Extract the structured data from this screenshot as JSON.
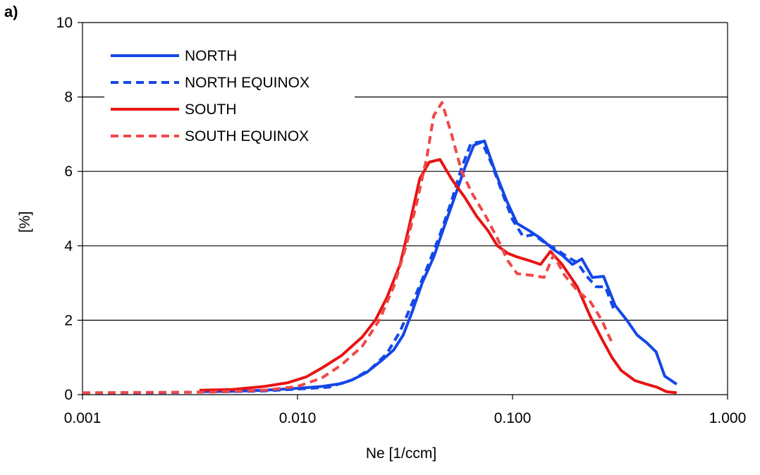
{
  "panel_label": "a)",
  "chart_data": {
    "type": "line",
    "title": "",
    "xlabel": "Ne [1/ccm]",
    "ylabel": "[%]",
    "xscale": "log",
    "xlim": [
      0.001,
      1.0
    ],
    "ylim": [
      0,
      10
    ],
    "xticks": [
      0.001,
      0.01,
      0.1,
      1.0
    ],
    "xtick_labels": [
      "0.001",
      "0.010",
      "0.100",
      "1.000"
    ],
    "yticks": [
      0,
      2,
      4,
      6,
      8,
      10
    ],
    "ytick_labels": [
      "0",
      "2",
      "4",
      "6",
      "8",
      "10"
    ],
    "grid": "horizontal",
    "legend_position": "top-left",
    "series": [
      {
        "name": "NORTH",
        "color": "#1347e8",
        "dash": "solid",
        "points": [
          [
            0.0035,
            0.08
          ],
          [
            0.005,
            0.09
          ],
          [
            0.007,
            0.12
          ],
          [
            0.01,
            0.17
          ],
          [
            0.013,
            0.22
          ],
          [
            0.016,
            0.3
          ],
          [
            0.018,
            0.4
          ],
          [
            0.021,
            0.6
          ],
          [
            0.025,
            0.95
          ],
          [
            0.028,
            1.2
          ],
          [
            0.031,
            1.6
          ],
          [
            0.034,
            2.2
          ],
          [
            0.038,
            3.0
          ],
          [
            0.043,
            3.7
          ],
          [
            0.048,
            4.5
          ],
          [
            0.053,
            5.2
          ],
          [
            0.06,
            6.1
          ],
          [
            0.066,
            6.7
          ],
          [
            0.074,
            6.82
          ],
          [
            0.083,
            6.0
          ],
          [
            0.094,
            5.2
          ],
          [
            0.105,
            4.6
          ],
          [
            0.12,
            4.4
          ],
          [
            0.135,
            4.2
          ],
          [
            0.155,
            3.9
          ],
          [
            0.17,
            3.75
          ],
          [
            0.19,
            3.5
          ],
          [
            0.21,
            3.65
          ],
          [
            0.235,
            3.15
          ],
          [
            0.265,
            3.18
          ],
          [
            0.3,
            2.4
          ],
          [
            0.34,
            2.0
          ],
          [
            0.38,
            1.6
          ],
          [
            0.42,
            1.4
          ],
          [
            0.465,
            1.15
          ],
          [
            0.51,
            0.5
          ],
          [
            0.58,
            0.28
          ]
        ]
      },
      {
        "name": "NORTH EQUINOX",
        "color": "#1347e8",
        "dash": "dashed",
        "points": [
          [
            0.001,
            0.05
          ],
          [
            0.002,
            0.05
          ],
          [
            0.004,
            0.07
          ],
          [
            0.007,
            0.1
          ],
          [
            0.01,
            0.15
          ],
          [
            0.014,
            0.2
          ],
          [
            0.018,
            0.4
          ],
          [
            0.022,
            0.7
          ],
          [
            0.026,
            1.1
          ],
          [
            0.03,
            1.7
          ],
          [
            0.035,
            2.6
          ],
          [
            0.04,
            3.4
          ],
          [
            0.046,
            4.3
          ],
          [
            0.052,
            5.2
          ],
          [
            0.058,
            6.1
          ],
          [
            0.064,
            6.75
          ],
          [
            0.072,
            6.8
          ],
          [
            0.08,
            6.2
          ],
          [
            0.09,
            5.4
          ],
          [
            0.1,
            4.7
          ],
          [
            0.112,
            4.25
          ],
          [
            0.125,
            4.3
          ],
          [
            0.14,
            4.1
          ],
          [
            0.16,
            3.9
          ],
          [
            0.18,
            3.7
          ],
          [
            0.2,
            3.55
          ],
          [
            0.22,
            3.2
          ],
          [
            0.245,
            2.9
          ],
          [
            0.27,
            2.9
          ],
          [
            0.3,
            2.2
          ]
        ]
      },
      {
        "name": "SOUTH",
        "color": "#e81414",
        "dash": "solid",
        "points": [
          [
            0.0035,
            0.12
          ],
          [
            0.005,
            0.14
          ],
          [
            0.007,
            0.22
          ],
          [
            0.009,
            0.32
          ],
          [
            0.011,
            0.48
          ],
          [
            0.013,
            0.72
          ],
          [
            0.016,
            1.05
          ],
          [
            0.02,
            1.55
          ],
          [
            0.023,
            2.0
          ],
          [
            0.026,
            2.6
          ],
          [
            0.03,
            3.5
          ],
          [
            0.033,
            4.5
          ],
          [
            0.037,
            5.8
          ],
          [
            0.041,
            6.25
          ],
          [
            0.046,
            6.32
          ],
          [
            0.052,
            5.8
          ],
          [
            0.06,
            5.3
          ],
          [
            0.068,
            4.8
          ],
          [
            0.077,
            4.4
          ],
          [
            0.085,
            4.0
          ],
          [
            0.095,
            3.8
          ],
          [
            0.105,
            3.7
          ],
          [
            0.12,
            3.6
          ],
          [
            0.135,
            3.5
          ],
          [
            0.15,
            3.85
          ],
          [
            0.17,
            3.5
          ],
          [
            0.2,
            2.9
          ],
          [
            0.23,
            2.1
          ],
          [
            0.26,
            1.5
          ],
          [
            0.29,
            1.0
          ],
          [
            0.32,
            0.65
          ],
          [
            0.37,
            0.38
          ],
          [
            0.42,
            0.28
          ],
          [
            0.47,
            0.2
          ],
          [
            0.52,
            0.08
          ],
          [
            0.58,
            0.05
          ]
        ]
      },
      {
        "name": "SOUTH EQUINOX",
        "color": "#f04848",
        "dash": "dashed",
        "points": [
          [
            0.001,
            0.05
          ],
          [
            0.002,
            0.06
          ],
          [
            0.004,
            0.07
          ],
          [
            0.007,
            0.12
          ],
          [
            0.01,
            0.22
          ],
          [
            0.013,
            0.45
          ],
          [
            0.016,
            0.8
          ],
          [
            0.02,
            1.3
          ],
          [
            0.024,
            2.0
          ],
          [
            0.028,
            2.9
          ],
          [
            0.032,
            4.0
          ],
          [
            0.036,
            5.2
          ],
          [
            0.04,
            6.4
          ],
          [
            0.043,
            7.5
          ],
          [
            0.047,
            7.85
          ],
          [
            0.052,
            7.0
          ],
          [
            0.058,
            6.0
          ],
          [
            0.065,
            5.4
          ],
          [
            0.075,
            4.8
          ],
          [
            0.085,
            4.2
          ],
          [
            0.095,
            3.6
          ],
          [
            0.105,
            3.25
          ],
          [
            0.125,
            3.2
          ],
          [
            0.14,
            3.15
          ],
          [
            0.155,
            3.75
          ],
          [
            0.175,
            3.2
          ],
          [
            0.2,
            2.8
          ],
          [
            0.23,
            2.5
          ],
          [
            0.26,
            2.0
          ],
          [
            0.29,
            1.4
          ]
        ]
      }
    ]
  }
}
